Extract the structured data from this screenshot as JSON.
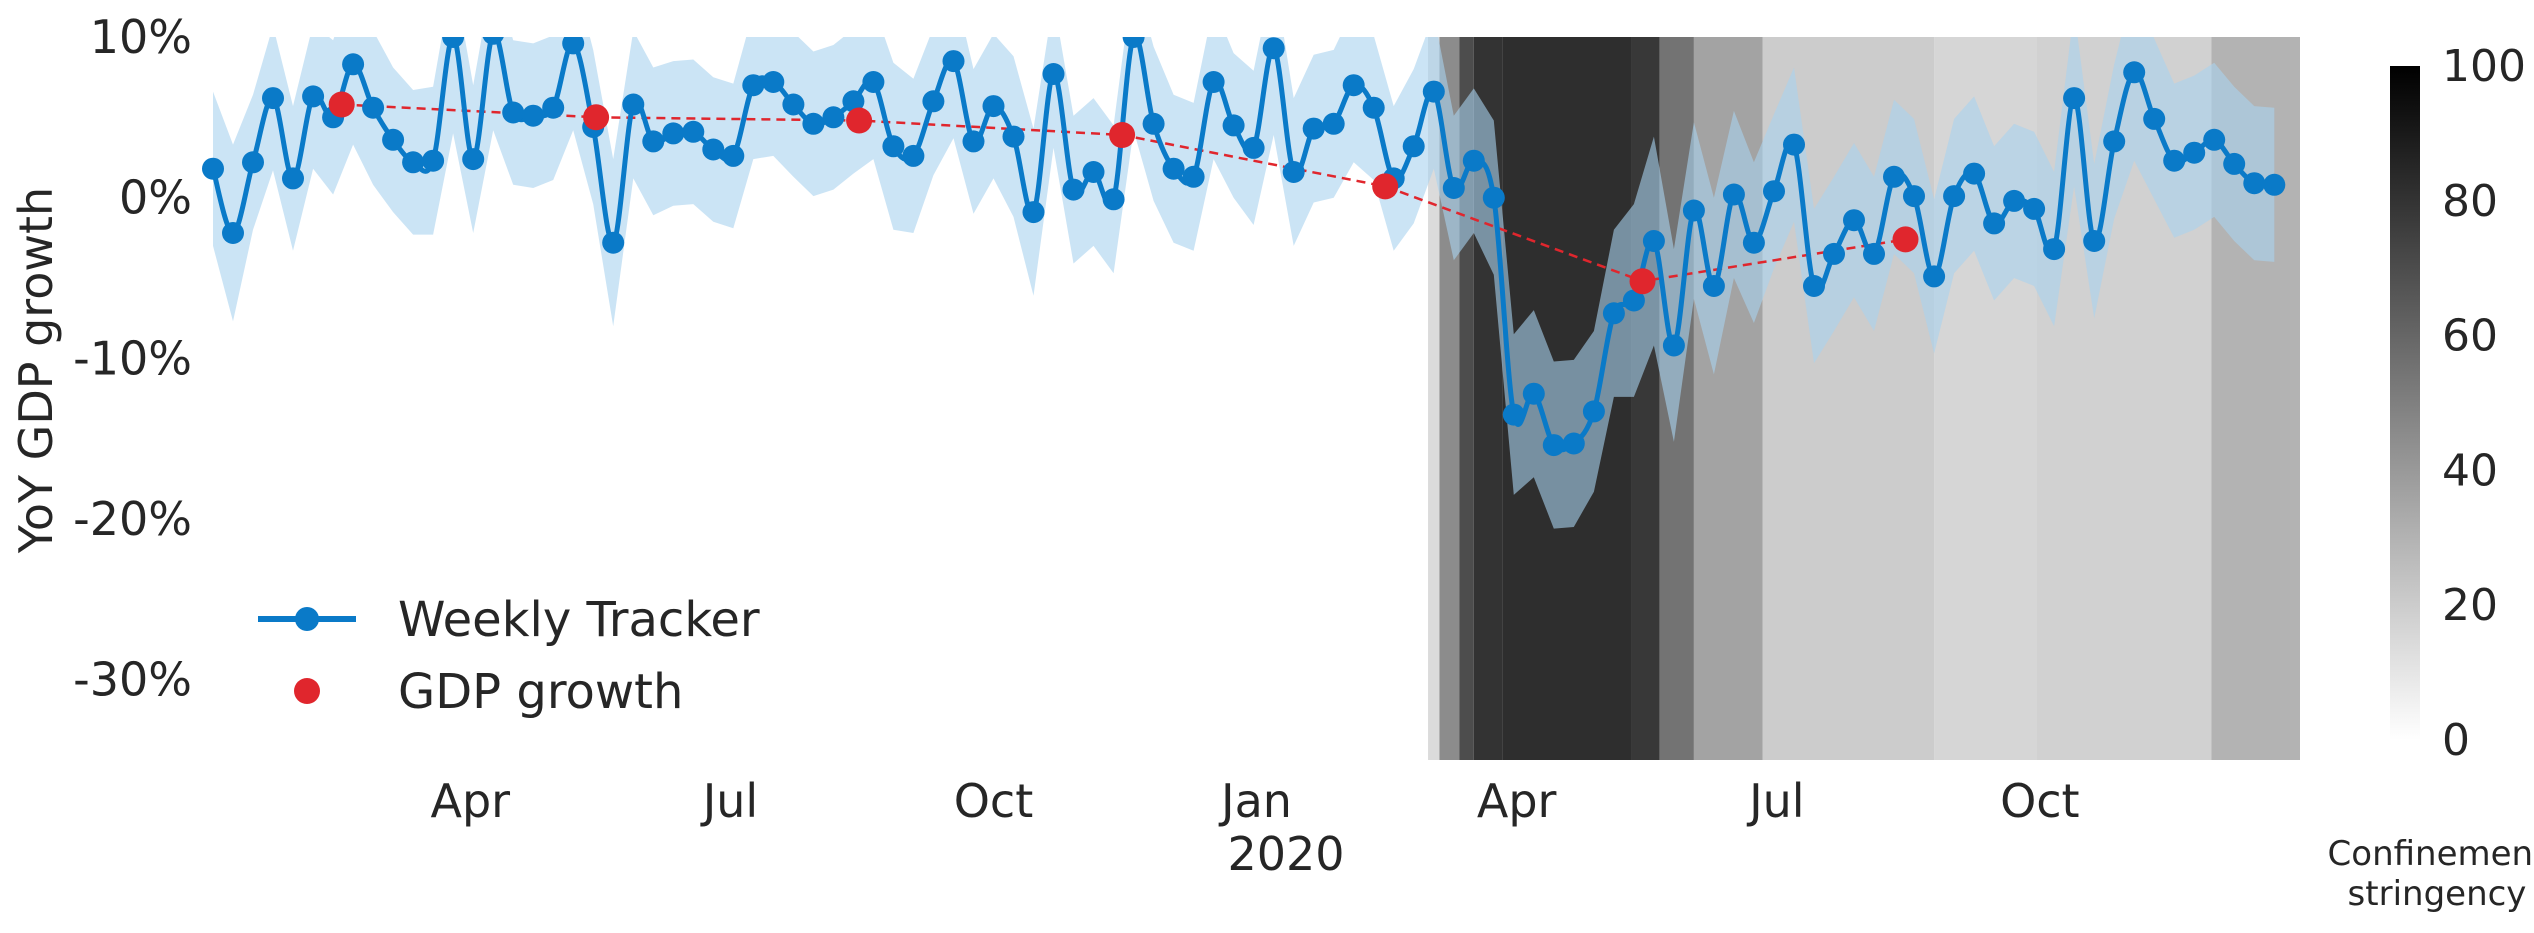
{
  "chart_data": {
    "type": "line",
    "ylabel": "YoY GDP growth",
    "xlim": [
      "2019-01-01",
      "2020-12-31"
    ],
    "ylim": [
      -35,
      10
    ],
    "yticks": [
      10,
      0,
      -10,
      -20,
      -30
    ],
    "ytick_labels": [
      "10%",
      "0%",
      "-10%",
      "-20%",
      "-30%"
    ],
    "xticks": [
      "2019-04-01",
      "2019-07-01",
      "2019-10-01",
      "2020-01-01",
      "2020-04-01",
      "2020-07-01",
      "2020-10-01"
    ],
    "xtick_labels": [
      "Apr",
      "Jul",
      "Oct",
      "Jan",
      "Apr",
      "Jul",
      "Oct"
    ],
    "year_label": "2020",
    "grid": false,
    "legend_position": "lower-left",
    "colors": {
      "tracker": "#0a7ac8",
      "band": "#a8d2ee",
      "gdp": "#e0262d"
    },
    "series": [
      {
        "name": "Weekly Tracker",
        "start": "2019-01-01",
        "step_days": 7,
        "values": [
          1.8,
          -2.2,
          2.2,
          6.2,
          1.2,
          6.3,
          5.0,
          8.3,
          5.6,
          3.6,
          2.2,
          2.3,
          10.0,
          2.4,
          10.2,
          5.3,
          5.1,
          5.6,
          9.6,
          4.4,
          -2.8,
          5.8,
          3.5,
          4.0,
          4.1,
          3.0,
          2.6,
          7.0,
          7.2,
          5.8,
          4.6,
          5.0,
          6.0,
          7.2,
          3.2,
          2.6,
          6.0,
          8.5,
          3.5,
          5.7,
          3.8,
          -0.9,
          7.7,
          0.5,
          1.6,
          -0.1,
          10.0,
          4.6,
          1.8,
          1.3,
          7.2,
          4.5,
          3.1,
          9.3,
          1.6,
          4.3,
          4.6,
          7.0,
          5.6,
          1.2,
          3.2,
          6.6,
          0.6,
          2.3,
          0.0,
          -13.5,
          -12.2,
          -15.4,
          -15.3,
          -13.3,
          -7.2,
          -6.4,
          -2.7,
          -9.2,
          -0.8,
          -5.5,
          0.2,
          -2.8,
          0.4,
          3.3,
          -5.5,
          -3.5,
          -1.4,
          -3.5,
          1.3,
          0.1,
          -4.9,
          0.1,
          1.5,
          -1.6,
          -0.2,
          -0.7,
          -3.2,
          6.2,
          -2.7,
          3.5,
          7.8,
          4.9,
          2.3,
          2.8,
          3.6,
          2.1,
          0.9,
          0.8
        ],
        "band_width": [
          4.8,
          5.5,
          4.2,
          4.5,
          4.5,
          4.5,
          4.8,
          5.0,
          4.8,
          4.5,
          4.5,
          4.6,
          6.0,
          4.6,
          6.0,
          4.5,
          4.5,
          4.5,
          5.4,
          4.8,
          5.2,
          4.6,
          4.6,
          4.5,
          4.5,
          4.5,
          4.5,
          4.6,
          4.6,
          4.5,
          4.5,
          4.5,
          4.5,
          4.8,
          5.2,
          4.8,
          4.6,
          4.8,
          4.5,
          4.5,
          5.0,
          5.2,
          4.6,
          4.6,
          4.6,
          4.6,
          5.8,
          4.8,
          4.6,
          4.6,
          4.8,
          4.5,
          4.8,
          5.4,
          4.6,
          4.6,
          4.6,
          4.8,
          4.5,
          4.5,
          4.8,
          4.8,
          4.5,
          4.5,
          4.8,
          5.0,
          5.2,
          5.2,
          5.2,
          5.0,
          5.2,
          6.0,
          6.5,
          6.0,
          5.5,
          5.5,
          5.2,
          5.0,
          4.8,
          4.8,
          4.8,
          4.8,
          4.8,
          4.8,
          4.8,
          4.8,
          4.8,
          4.8,
          4.8,
          4.8,
          4.8,
          4.8,
          4.8,
          5.5,
          4.8,
          4.8,
          5.5,
          5.0,
          4.8,
          4.8,
          4.8,
          4.8,
          4.8,
          4.8
        ]
      },
      {
        "name": "GDP growth",
        "x": [
          "2019-02-15",
          "2019-05-15",
          "2019-08-15",
          "2019-11-15",
          "2020-02-15",
          "2020-05-15",
          "2020-08-15"
        ],
        "values": [
          5.8,
          5.0,
          4.8,
          3.9,
          0.7,
          -5.2,
          -2.6
        ]
      }
    ],
    "shading": {
      "label": "Confinement stringency",
      "range": [
        0,
        100
      ],
      "ticks": [
        0,
        20,
        40,
        60,
        80,
        100
      ],
      "segments": [
        {
          "start": "2020-03-01",
          "end": "2020-03-05",
          "value": 14
        },
        {
          "start": "2020-03-05",
          "end": "2020-03-12",
          "value": 45
        },
        {
          "start": "2020-03-12",
          "end": "2020-03-17",
          "value": 70
        },
        {
          "start": "2020-03-17",
          "end": "2020-03-27",
          "value": 80
        },
        {
          "start": "2020-03-27",
          "end": "2020-05-11",
          "value": 82
        },
        {
          "start": "2020-05-11",
          "end": "2020-05-21",
          "value": 78
        },
        {
          "start": "2020-05-21",
          "end": "2020-06-02",
          "value": 55
        },
        {
          "start": "2020-06-02",
          "end": "2020-06-26",
          "value": 36
        },
        {
          "start": "2020-06-26",
          "end": "2020-08-25",
          "value": 20
        },
        {
          "start": "2020-08-25",
          "end": "2020-09-30",
          "value": 16
        },
        {
          "start": "2020-09-30",
          "end": "2020-11-30",
          "value": 18
        },
        {
          "start": "2020-11-30",
          "end": "2020-12-31",
          "value": 30
        }
      ]
    }
  }
}
